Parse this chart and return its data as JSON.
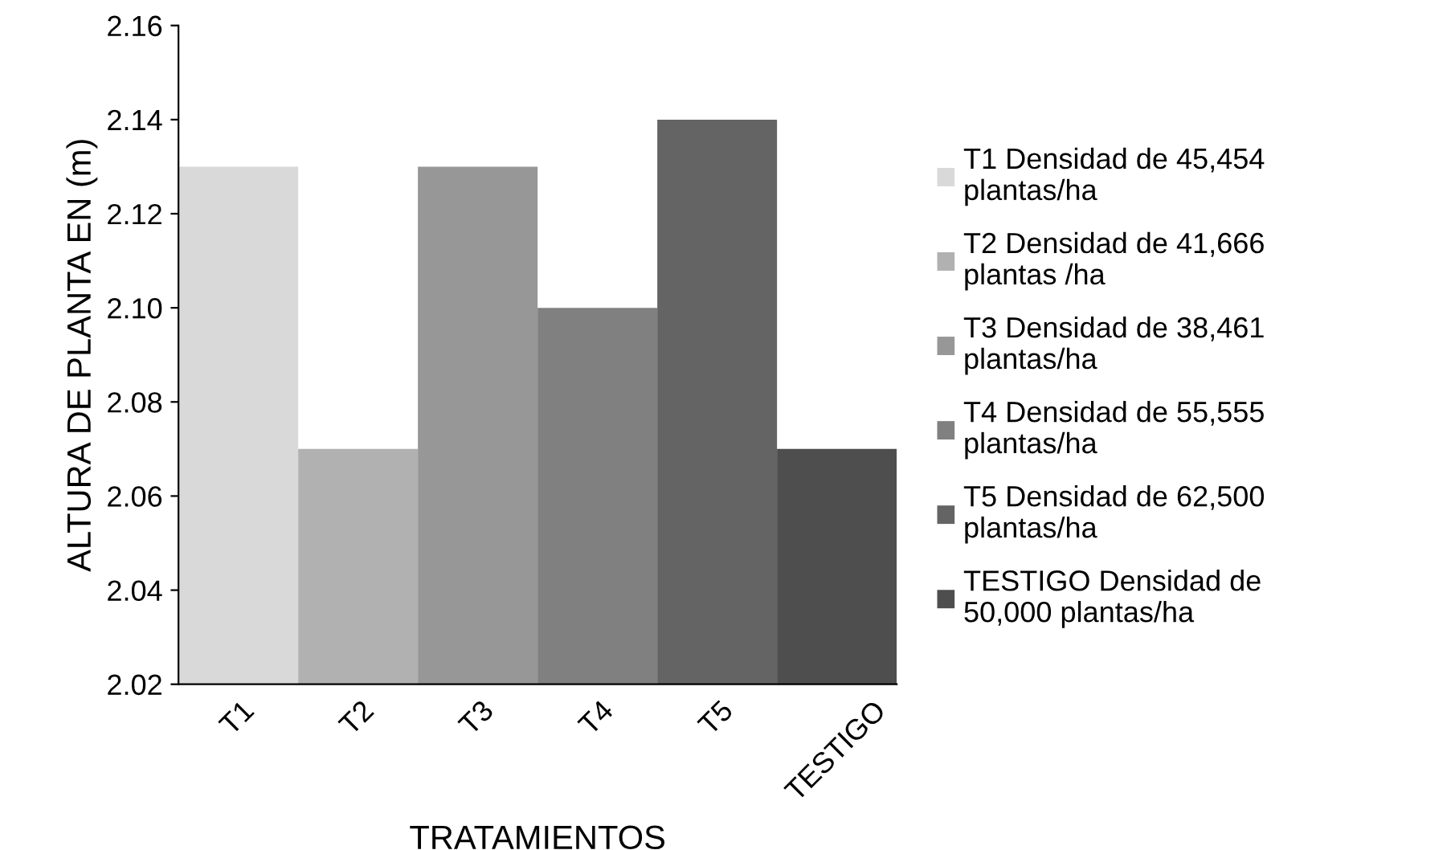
{
  "chart_data": {
    "type": "bar",
    "xlabel": "TRATAMIENTOS",
    "ylabel": "ALTURA DE PLANTA EN (m)",
    "categories": [
      "T1",
      "T2",
      "T3",
      "T4",
      "T5",
      "TESTIGO"
    ],
    "series": [
      {
        "name": "T1 Densidad de 45,454\nplantas/ha",
        "color": "#d9d9d9",
        "values": [
          2.13,
          null,
          null,
          null,
          null,
          null
        ]
      },
      {
        "name": "T2 Densidad de 41,666\nplantas /ha",
        "color": "#b1b1b1",
        "values": [
          null,
          2.07,
          null,
          null,
          null,
          null
        ]
      },
      {
        "name": "T3 Densidad de 38,461\nplantas/ha",
        "color": "#979797",
        "values": [
          null,
          null,
          2.13,
          null,
          null,
          null
        ]
      },
      {
        "name": "T4 Densidad de 55,555\nplantas/ha",
        "color": "#808080",
        "values": [
          null,
          null,
          null,
          2.1,
          null,
          null
        ]
      },
      {
        "name": "T5 Densidad de 62,500\nplantas/ha",
        "color": "#646464",
        "values": [
          null,
          null,
          null,
          null,
          2.14,
          null
        ]
      },
      {
        "name": "TESTIGO Densidad de\n50,000 plantas/ha",
        "color": "#4e4e4e",
        "values": [
          null,
          null,
          null,
          null,
          null,
          2.07
        ]
      }
    ],
    "ylim": [
      2.02,
      2.16
    ],
    "yticks": [
      {
        "value": 2.02,
        "label": "2.02"
      },
      {
        "value": 2.04,
        "label": "2.04"
      },
      {
        "value": 2.06,
        "label": "2.06"
      },
      {
        "value": 2.08,
        "label": "2.08"
      },
      {
        "value": 2.1,
        "label": "2.10"
      },
      {
        "value": 2.12,
        "label": "2.12"
      },
      {
        "value": 2.14,
        "label": "2.14"
      },
      {
        "value": 2.16,
        "label": "2.16"
      }
    ],
    "grid": false,
    "legend": "right"
  }
}
